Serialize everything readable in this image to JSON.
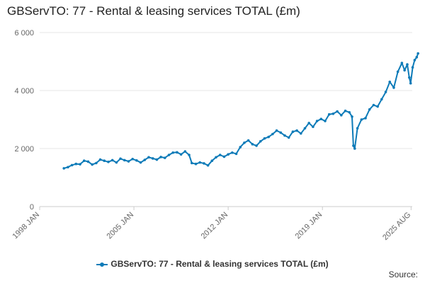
{
  "title": "GBServTO: 77 - Rental & leasing services TOTAL (£m)",
  "source_label": "Source:",
  "chart_data": {
    "type": "line",
    "title": "GBServTO: 77 - Rental & leasing services TOTAL (£m)",
    "xlabel": "",
    "ylabel": "",
    "x_ticks": [
      "1998 JAN",
      "2005 JAN",
      "2012 JAN",
      "2019 JAN",
      "2025 AUG"
    ],
    "x_range": [
      1998.0,
      2025.67
    ],
    "ylim": [
      0,
      6000
    ],
    "y_ticks": [
      0,
      2000,
      4000,
      6000
    ],
    "y_tick_labels": [
      "0",
      "2 000",
      "4 000",
      "6 000"
    ],
    "grid": true,
    "legend_position": "bottom",
    "color": "#0d7bb8",
    "series": [
      {
        "name": "GBServTO: 77 - Rental & leasing services TOTAL (£m)",
        "points": [
          [
            1999.8,
            1320
          ],
          [
            2000.1,
            1360
          ],
          [
            2000.4,
            1430
          ],
          [
            2000.7,
            1470
          ],
          [
            2001.0,
            1460
          ],
          [
            2001.3,
            1580
          ],
          [
            2001.6,
            1550
          ],
          [
            2001.9,
            1450
          ],
          [
            2002.2,
            1500
          ],
          [
            2002.5,
            1620
          ],
          [
            2002.8,
            1580
          ],
          [
            2003.1,
            1540
          ],
          [
            2003.4,
            1600
          ],
          [
            2003.7,
            1520
          ],
          [
            2004.0,
            1650
          ],
          [
            2004.3,
            1600
          ],
          [
            2004.6,
            1560
          ],
          [
            2004.9,
            1640
          ],
          [
            2005.2,
            1590
          ],
          [
            2005.5,
            1520
          ],
          [
            2005.8,
            1610
          ],
          [
            2006.1,
            1700
          ],
          [
            2006.4,
            1660
          ],
          [
            2006.7,
            1620
          ],
          [
            2007.0,
            1710
          ],
          [
            2007.3,
            1680
          ],
          [
            2007.6,
            1780
          ],
          [
            2007.9,
            1860
          ],
          [
            2008.2,
            1870
          ],
          [
            2008.5,
            1800
          ],
          [
            2008.8,
            1900
          ],
          [
            2009.1,
            1780
          ],
          [
            2009.3,
            1500
          ],
          [
            2009.6,
            1470
          ],
          [
            2009.9,
            1520
          ],
          [
            2010.2,
            1490
          ],
          [
            2010.5,
            1420
          ],
          [
            2010.8,
            1580
          ],
          [
            2011.1,
            1700
          ],
          [
            2011.4,
            1780
          ],
          [
            2011.7,
            1720
          ],
          [
            2012.0,
            1800
          ],
          [
            2012.3,
            1860
          ],
          [
            2012.6,
            1820
          ],
          [
            2012.9,
            2050
          ],
          [
            2013.2,
            2200
          ],
          [
            2013.5,
            2280
          ],
          [
            2013.8,
            2150
          ],
          [
            2014.1,
            2100
          ],
          [
            2014.4,
            2250
          ],
          [
            2014.7,
            2350
          ],
          [
            2015.0,
            2400
          ],
          [
            2015.3,
            2500
          ],
          [
            2015.6,
            2620
          ],
          [
            2015.9,
            2550
          ],
          [
            2016.2,
            2450
          ],
          [
            2016.5,
            2380
          ],
          [
            2016.8,
            2580
          ],
          [
            2017.1,
            2620
          ],
          [
            2017.4,
            2520
          ],
          [
            2017.7,
            2700
          ],
          [
            2018.0,
            2880
          ],
          [
            2018.3,
            2750
          ],
          [
            2018.6,
            2950
          ],
          [
            2018.9,
            3020
          ],
          [
            2019.2,
            2950
          ],
          [
            2019.5,
            3180
          ],
          [
            2019.8,
            3200
          ],
          [
            2020.1,
            3280
          ],
          [
            2020.4,
            3150
          ],
          [
            2020.7,
            3300
          ],
          [
            2021.0,
            3250
          ],
          [
            2021.2,
            3100
          ],
          [
            2021.3,
            2100
          ],
          [
            2021.4,
            2000
          ],
          [
            2021.6,
            2700
          ],
          [
            2021.9,
            3000
          ],
          [
            2022.2,
            3050
          ],
          [
            2022.5,
            3350
          ],
          [
            2022.8,
            3500
          ],
          [
            2023.1,
            3450
          ],
          [
            2023.4,
            3700
          ],
          [
            2023.7,
            3950
          ],
          [
            2024.0,
            4300
          ],
          [
            2024.3,
            4100
          ],
          [
            2024.6,
            4650
          ],
          [
            2024.9,
            4950
          ],
          [
            2025.1,
            4700
          ],
          [
            2025.3,
            4900
          ],
          [
            2025.45,
            4450
          ],
          [
            2025.55,
            4250
          ],
          [
            2025.7,
            4800
          ],
          [
            2025.85,
            5050
          ],
          [
            2026.0,
            5150
          ],
          [
            2026.1,
            5280
          ]
        ]
      }
    ]
  }
}
